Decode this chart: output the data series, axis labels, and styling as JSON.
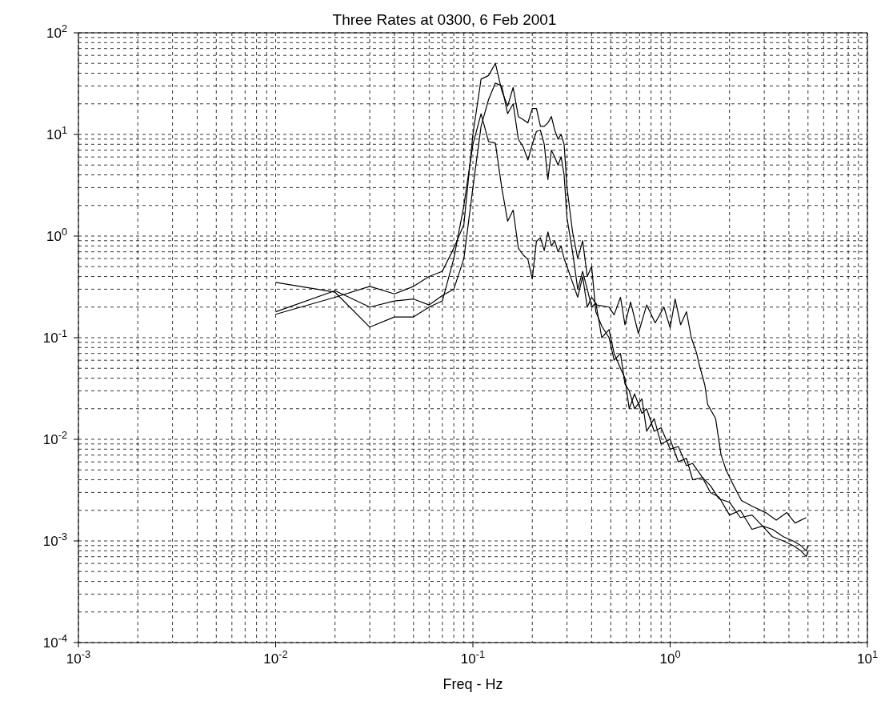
{
  "chart_data": {
    "type": "line",
    "title": "Three Rates at 0300, 6 Feb 2001",
    "xlabel": "Freq - Hz",
    "log": "xy",
    "grid": true,
    "legend": false,
    "marker": "none",
    "line_style": "solid",
    "xlim": [
      0.001,
      10
    ],
    "ylim": [
      0.0001,
      100
    ],
    "xticks": [
      {
        "value": 0.001,
        "label": "10$^{-3}$"
      },
      {
        "value": 0.01,
        "label": "10$^{-2}$"
      },
      {
        "value": 0.1,
        "label": "10$^{-1}$"
      },
      {
        "value": 1,
        "label": "10$^{0}$"
      },
      {
        "value": 10,
        "label": "10$^{1}$"
      }
    ],
    "yticks": [
      {
        "value": 0.0001,
        "label": "10$^{-4}$"
      },
      {
        "value": 0.001,
        "label": "10$^{-3}$"
      },
      {
        "value": 0.01,
        "label": "10$^{-2}$"
      },
      {
        "value": 0.1,
        "label": "10$^{-1}$"
      },
      {
        "value": 1,
        "label": "10$^{0}$"
      },
      {
        "value": 10,
        "label": "10$^{1}$"
      },
      {
        "value": 100,
        "label": "10$^{2}$"
      }
    ],
    "series": [
      {
        "color": "#000000",
        "x": [
          0.01,
          0.02,
          0.03,
          0.04,
          0.05,
          0.06,
          0.07,
          0.08,
          0.09,
          0.1,
          0.11,
          0.12,
          0.13,
          0.14,
          0.15,
          0.16,
          0.17,
          0.18,
          0.19,
          0.2,
          0.21,
          0.22,
          0.23,
          0.24,
          0.25,
          0.26,
          0.27,
          0.28,
          0.29,
          0.3,
          0.32,
          0.34,
          0.36,
          0.38,
          0.4,
          0.42,
          0.45,
          0.49,
          0.52,
          0.56,
          0.59,
          0.62,
          0.66,
          0.72,
          0.76,
          0.83,
          0.9,
          1.0,
          1.1,
          1.21,
          1.3,
          1.46,
          1.6,
          1.77,
          2.0,
          2.27,
          2.6,
          2.94,
          3.3,
          3.75,
          4.2,
          4.6,
          4.9,
          5.0
        ],
        "values": [
          0.17,
          0.25,
          0.32,
          0.27,
          0.32,
          0.4,
          0.45,
          0.76,
          1.3,
          10,
          35,
          38,
          50,
          27,
          19,
          29,
          15,
          14,
          13,
          18,
          18,
          12,
          12,
          13,
          15,
          11,
          9,
          10,
          8,
          3,
          1.1,
          0.6,
          0.9,
          0.4,
          0.5,
          0.18,
          0.13,
          0.1,
          0.06,
          0.07,
          0.035,
          0.03,
          0.02,
          0.025,
          0.012,
          0.016,
          0.009,
          0.01,
          0.006,
          0.0065,
          0.004,
          0.0042,
          0.003,
          0.0027,
          0.0018,
          0.002,
          0.0013,
          0.0014,
          0.0011,
          0.001,
          0.0009,
          0.0008,
          0.0007,
          0.0008
        ]
      },
      {
        "color": "#000000",
        "x": [
          0.01,
          0.02,
          0.03,
          0.04,
          0.05,
          0.06,
          0.07,
          0.08,
          0.09,
          0.1,
          0.11,
          0.12,
          0.13,
          0.14,
          0.15,
          0.16,
          0.17,
          0.18,
          0.19,
          0.2,
          0.21,
          0.22,
          0.23,
          0.24,
          0.25,
          0.26,
          0.27,
          0.28,
          0.29,
          0.3,
          0.32,
          0.34,
          0.36,
          0.38,
          0.4,
          0.42,
          0.45,
          0.49,
          0.52,
          0.56,
          0.59,
          0.62,
          0.66,
          0.72,
          0.76,
          0.83,
          0.9,
          1.0,
          1.1,
          1.21,
          1.3,
          1.46,
          1.6,
          1.77,
          2.0,
          2.27,
          2.6,
          2.94,
          3.3,
          3.75,
          4.2,
          4.6,
          4.9,
          5.0
        ],
        "values": [
          0.18,
          0.29,
          0.2,
          0.23,
          0.24,
          0.21,
          0.26,
          0.3,
          0.6,
          3,
          12,
          22,
          32,
          30,
          16,
          20,
          9,
          7.5,
          5.6,
          8,
          10.7,
          11,
          8,
          3.6,
          7,
          6,
          5,
          6,
          4,
          1.5,
          0.7,
          0.3,
          0.45,
          0.3,
          0.2,
          0.22,
          0.1,
          0.12,
          0.07,
          0.05,
          0.04,
          0.02,
          0.028,
          0.018,
          0.02,
          0.012,
          0.013,
          0.008,
          0.0085,
          0.0055,
          0.0058,
          0.0042,
          0.0035,
          0.0026,
          0.0024,
          0.0017,
          0.0018,
          0.0014,
          0.0013,
          0.0011,
          0.001,
          0.0009,
          0.0008,
          0.0009
        ]
      },
      {
        "color": "#000000",
        "x": [
          0.01,
          0.02,
          0.03,
          0.04,
          0.05,
          0.06,
          0.07,
          0.08,
          0.09,
          0.1,
          0.11,
          0.12,
          0.13,
          0.14,
          0.15,
          0.16,
          0.17,
          0.18,
          0.19,
          0.2,
          0.21,
          0.22,
          0.23,
          0.24,
          0.25,
          0.26,
          0.27,
          0.28,
          0.29,
          0.3,
          0.32,
          0.34,
          0.36,
          0.38,
          0.4,
          0.425,
          0.49,
          0.52,
          0.56,
          0.59,
          0.63,
          0.69,
          0.76,
          0.84,
          0.93,
          1.0,
          1.06,
          1.13,
          1.21,
          1.28,
          1.36,
          1.41,
          1.5,
          1.55,
          1.7,
          1.81,
          1.92,
          2.1,
          2.3,
          2.6,
          3.05,
          3.45,
          3.9,
          4.3,
          4.9
        ],
        "values": [
          0.35,
          0.28,
          0.127,
          0.16,
          0.16,
          0.2,
          0.23,
          0.6,
          2,
          8,
          16,
          8.5,
          8.2,
          3,
          1.4,
          1.8,
          0.76,
          0.65,
          0.59,
          0.38,
          0.89,
          0.96,
          0.72,
          1.1,
          0.8,
          0.9,
          0.7,
          0.8,
          0.6,
          0.5,
          0.35,
          0.25,
          0.4,
          0.2,
          0.25,
          0.21,
          0.2,
          0.168,
          0.25,
          0.134,
          0.225,
          0.11,
          0.21,
          0.14,
          0.2,
          0.125,
          0.24,
          0.134,
          0.18,
          0.1,
          0.071,
          0.053,
          0.034,
          0.022,
          0.016,
          0.0071,
          0.005,
          0.0035,
          0.0025,
          0.0022,
          0.0019,
          0.0016,
          0.0019,
          0.0015,
          0.0017
        ]
      }
    ]
  }
}
